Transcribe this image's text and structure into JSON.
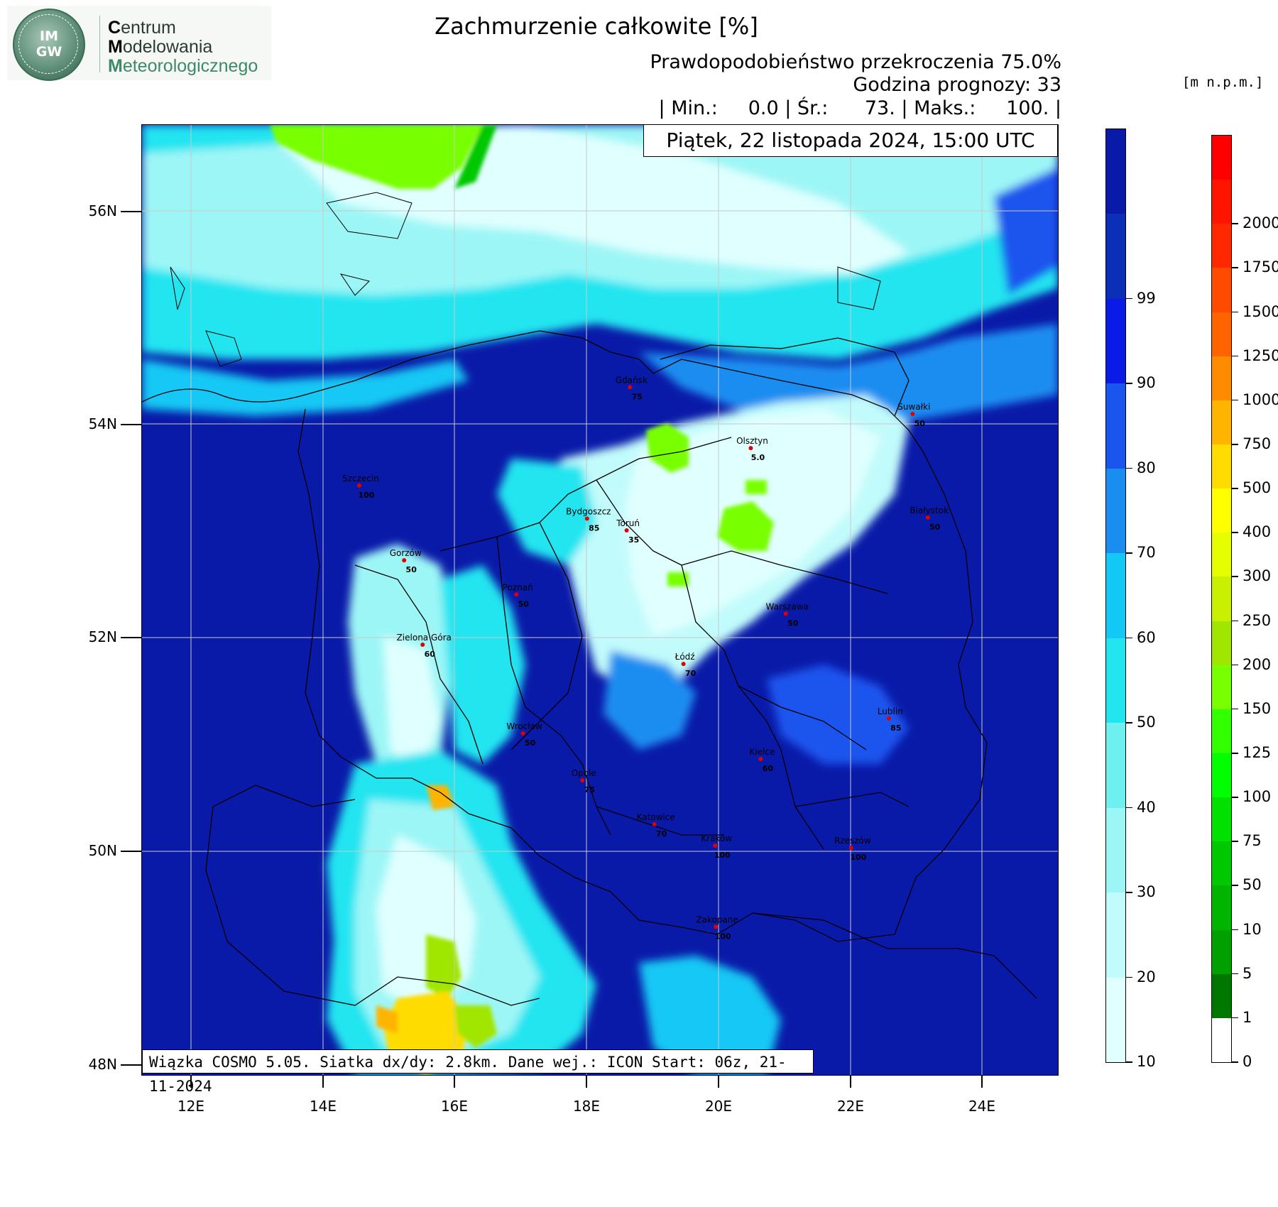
{
  "logo": {
    "letters_top": "IM",
    "letters_bottom": "GW",
    "org_line1_initial": "C",
    "org_line1_rest": "entrum",
    "org_line2_initial": "M",
    "org_line2_rest": "odelowania",
    "org_line3_initial": "M",
    "org_line3_rest": "eteorologicznego"
  },
  "title": "Zachmurzenie całkowite [%]",
  "info": {
    "probability": "Prawdopodobieństwo przekroczenia 75.0%",
    "forecast_hour": "Godzina prognozy: 33",
    "stats": "| Min.:     0.0 | Śr.:      73. | Maks.:     100. |"
  },
  "date_label": "Piątek, 22 listopada 2024, 15:00 UTC",
  "run_label": "Wiązka COSMO 5.05. Siatka dx/dy: 2.8km. Dane wej.: ICON Start: 06z, 21-11-2024",
  "unit_label": "[m n.p.m.]",
  "axes": {
    "lat_labels": [
      "56N",
      "54N",
      "52N",
      "50N",
      "48N"
    ],
    "lon_labels": [
      "12E",
      "14E",
      "16E",
      "18E",
      "20E",
      "22E",
      "24E"
    ]
  },
  "cities": [
    {
      "name": "Gdańsk",
      "value": "75",
      "lon": 18.65,
      "lat": 54.35
    },
    {
      "name": "Suwałki",
      "value": "50",
      "lon": 22.93,
      "lat": 54.1
    },
    {
      "name": "Olsztyn",
      "value": "5.0",
      "lon": 20.48,
      "lat": 53.78
    },
    {
      "name": "Szczecin",
      "value": "100",
      "lon": 14.55,
      "lat": 53.43
    },
    {
      "name": "Bydgoszcz",
      "value": "85",
      "lon": 18.0,
      "lat": 53.12
    },
    {
      "name": "Toruń",
      "value": "35",
      "lon": 18.6,
      "lat": 53.01
    },
    {
      "name": "Białystok",
      "value": "50",
      "lon": 23.16,
      "lat": 53.13
    },
    {
      "name": "Gorzów",
      "value": "50",
      "lon": 15.23,
      "lat": 52.73
    },
    {
      "name": "Poznań",
      "value": "50",
      "lon": 16.93,
      "lat": 52.41
    },
    {
      "name": "Warszawa",
      "value": "50",
      "lon": 21.01,
      "lat": 52.23
    },
    {
      "name": "Zielona Góra",
      "value": "60",
      "lon": 15.51,
      "lat": 51.94
    },
    {
      "name": "Łódź",
      "value": "70",
      "lon": 19.46,
      "lat": 51.76
    },
    {
      "name": "Lublin",
      "value": "85",
      "lon": 22.57,
      "lat": 51.25
    },
    {
      "name": "Wrocław",
      "value": "50",
      "lon": 17.03,
      "lat": 51.11
    },
    {
      "name": "Kielce",
      "value": "60",
      "lon": 20.63,
      "lat": 50.87
    },
    {
      "name": "Opole",
      "value": "75",
      "lon": 17.93,
      "lat": 50.67
    },
    {
      "name": "Katowice",
      "value": "70",
      "lon": 19.02,
      "lat": 50.26
    },
    {
      "name": "Kraków",
      "value": "100",
      "lon": 19.94,
      "lat": 50.06
    },
    {
      "name": "Rzeszów",
      "value": "100",
      "lon": 22.0,
      "lat": 50.04
    },
    {
      "name": "Zakopane",
      "value": "100",
      "lon": 19.95,
      "lat": 49.3
    }
  ],
  "colorbar_cloud": {
    "title": "",
    "labels": [
      "10",
      "20",
      "30",
      "40",
      "50",
      "60",
      "70",
      "80",
      "90",
      "99"
    ],
    "colors": [
      "#e0ffff",
      "#c2fbfb",
      "#9df6f6",
      "#6ef0f0",
      "#22e5f0",
      "#14c8f5",
      "#1a8df0",
      "#1a55ee",
      "#0a1be8",
      "#0c2fb8",
      "#0a1aa8"
    ]
  },
  "colorbar_elevation": {
    "labels": [
      "0",
      "1",
      "5",
      "10",
      "50",
      "75",
      "100",
      "125",
      "150",
      "200",
      "250",
      "300",
      "400",
      "500",
      "750",
      "1000",
      "1250",
      "1500",
      "1750",
      "2000"
    ],
    "colors": [
      "#ffffff",
      "#007800",
      "#00a000",
      "#00b400",
      "#00c800",
      "#00e100",
      "#00ff00",
      "#32ff00",
      "#78ff00",
      "#a0e600",
      "#c8f000",
      "#e6ff00",
      "#ffff00",
      "#ffdc00",
      "#ffb400",
      "#ff8c00",
      "#ff6400",
      "#ff4b00",
      "#ff2800",
      "#ff1400",
      "#ff0000"
    ]
  }
}
